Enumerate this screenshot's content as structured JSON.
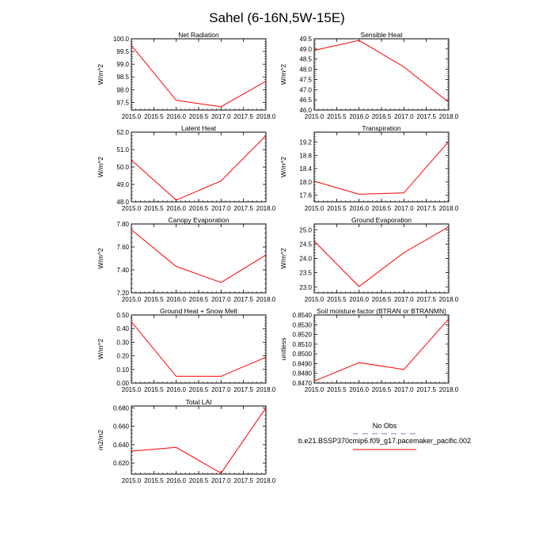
{
  "figure": {
    "title": "Sahel (6-16N,5W-15E)"
  },
  "colors": {
    "series": "#ff0000",
    "obs": "#a9a9d6",
    "axis": "#000000"
  },
  "legend": {
    "entries": [
      {
        "label": "No Obs",
        "color": "#a9a9d6",
        "dash": true
      },
      {
        "label": "b.e21.BSSP370cmip6.f09_g17.pacemaker_pacific.002",
        "color": "#ff0000",
        "dash": false
      }
    ]
  },
  "chart_data": [
    {
      "type": "line",
      "title": "Net Radiation",
      "ylabel": "W/m^2",
      "x": [
        2015,
        2016,
        2017,
        2018
      ],
      "values": [
        99.74,
        97.58,
        97.33,
        98.33
      ],
      "xlim": [
        2015,
        2018
      ],
      "ylim": [
        97.2,
        100.0
      ],
      "xticks": [
        "2015.0",
        "2015.5",
        "2016.0",
        "2016.5",
        "2017.0",
        "2017.5",
        "2018.0"
      ],
      "yticks": [
        "97.5",
        "98.0",
        "98.5",
        "99.0",
        "99.5",
        "100.0"
      ]
    },
    {
      "type": "line",
      "title": "Sensible Heat",
      "ylabel": "W/m^2",
      "x": [
        2015,
        2016,
        2017,
        2018
      ],
      "values": [
        48.93,
        49.42,
        48.12,
        46.38
      ],
      "xlim": [
        2015,
        2018
      ],
      "ylim": [
        46.0,
        49.5
      ],
      "xticks": [
        "2015.0",
        "2015.5",
        "2016.0",
        "2016.5",
        "2017.0",
        "2017.5",
        "2018.0"
      ],
      "yticks": [
        "46.0",
        "46.5",
        "47.0",
        "47.5",
        "48.0",
        "48.5",
        "49.0",
        "49.5"
      ]
    },
    {
      "type": "line",
      "title": "Latent Heat",
      "ylabel": "W/m^2",
      "x": [
        2015,
        2016,
        2017,
        2018
      ],
      "values": [
        50.4,
        48.1,
        49.2,
        51.8
      ],
      "xlim": [
        2015,
        2018
      ],
      "ylim": [
        48.0,
        52.0
      ],
      "xticks": [
        "2015.0",
        "2015.5",
        "2016.0",
        "2016.5",
        "2017.0",
        "2017.5",
        "2018.0"
      ],
      "yticks": [
        "48.0",
        "49.0",
        "50.0",
        "51.0",
        "52.0"
      ]
    },
    {
      "type": "line",
      "title": "Transpiration",
      "ylabel": "W/m^2",
      "x": [
        2015,
        2016,
        2017,
        2018
      ],
      "values": [
        18.02,
        17.63,
        17.67,
        19.22
      ],
      "xlim": [
        2015,
        2018
      ],
      "ylim": [
        17.4,
        19.5
      ],
      "xticks": [
        "2015.0",
        "2015.5",
        "2016.0",
        "2016.5",
        "2017.0",
        "2017.5",
        "2018.0"
      ],
      "yticks": [
        "17.6",
        "18.0",
        "18.4",
        "18.8",
        "19.2"
      ]
    },
    {
      "type": "line",
      "title": "Canopy Evaporation",
      "ylabel": "W/m^2",
      "x": [
        2015,
        2016,
        2017,
        2018
      ],
      "values": [
        7.75,
        7.43,
        7.29,
        7.53
      ],
      "xlim": [
        2015,
        2018
      ],
      "ylim": [
        7.2,
        7.8
      ],
      "xticks": [
        "2015.0",
        "2015.5",
        "2016.0",
        "2016.5",
        "2017.0",
        "2017.5",
        "2018.0"
      ],
      "yticks": [
        "7.20",
        "7.40",
        "7.60",
        "7.80"
      ]
    },
    {
      "type": "line",
      "title": "Ground Evaporation",
      "ylabel": "W/m^2",
      "x": [
        2015,
        2016,
        2017,
        2018
      ],
      "values": [
        24.6,
        23.02,
        24.2,
        25.1
      ],
      "xlim": [
        2015,
        2018
      ],
      "ylim": [
        22.8,
        25.2
      ],
      "xticks": [
        "2015.0",
        "2015.5",
        "2016.0",
        "2016.5",
        "2017.0",
        "2017.5",
        "2018.0"
      ],
      "yticks": [
        "23.0",
        "23.5",
        "24.0",
        "24.5",
        "25.0"
      ]
    },
    {
      "type": "line",
      "title": "Ground Heat + Snow Melt",
      "ylabel": "W/m^2",
      "x": [
        2015,
        2016,
        2017,
        2018
      ],
      "values": [
        0.45,
        0.05,
        0.05,
        0.19
      ],
      "xlim": [
        2015,
        2018
      ],
      "ylim": [
        0.0,
        0.5
      ],
      "xticks": [
        "2015.0",
        "2015.5",
        "2016.0",
        "2016.5",
        "2017.0",
        "2017.5",
        "2018.0"
      ],
      "yticks": [
        "0.00",
        "0.10",
        "0.20",
        "0.30",
        "0.40",
        "0.50"
      ]
    },
    {
      "type": "line",
      "title": "Soil moisture factor (BTRAN or BTRANMN)",
      "ylabel": "unitless",
      "x": [
        2015,
        2016,
        2017,
        2018
      ],
      "values": [
        0.8472,
        0.8491,
        0.8484,
        0.8536
      ],
      "xlim": [
        2015,
        2018
      ],
      "ylim": [
        0.847,
        0.854
      ],
      "xticks": [
        "2015.0",
        "2015.5",
        "2016.0",
        "2016.5",
        "2017.0",
        "2017.5",
        "2018.0"
      ],
      "yticks": [
        "0.8470",
        "0.8480",
        "0.8490",
        "0.8500",
        "0.8510",
        "0.8520",
        "0.8530",
        "0.8540"
      ]
    },
    {
      "type": "line",
      "title": "Total LAI",
      "ylabel": "m2/m2",
      "x": [
        2015,
        2016,
        2017,
        2018
      ],
      "values": [
        0.633,
        0.637,
        0.609,
        0.68
      ],
      "xlim": [
        2015,
        2018
      ],
      "ylim": [
        0.608,
        0.682
      ],
      "xticks": [
        "2015.0",
        "2015.5",
        "2016.0",
        "2016.5",
        "2017.0",
        "2017.5",
        "2018.0"
      ],
      "yticks": [
        "0.620",
        "0.640",
        "0.660",
        "0.680"
      ]
    }
  ]
}
